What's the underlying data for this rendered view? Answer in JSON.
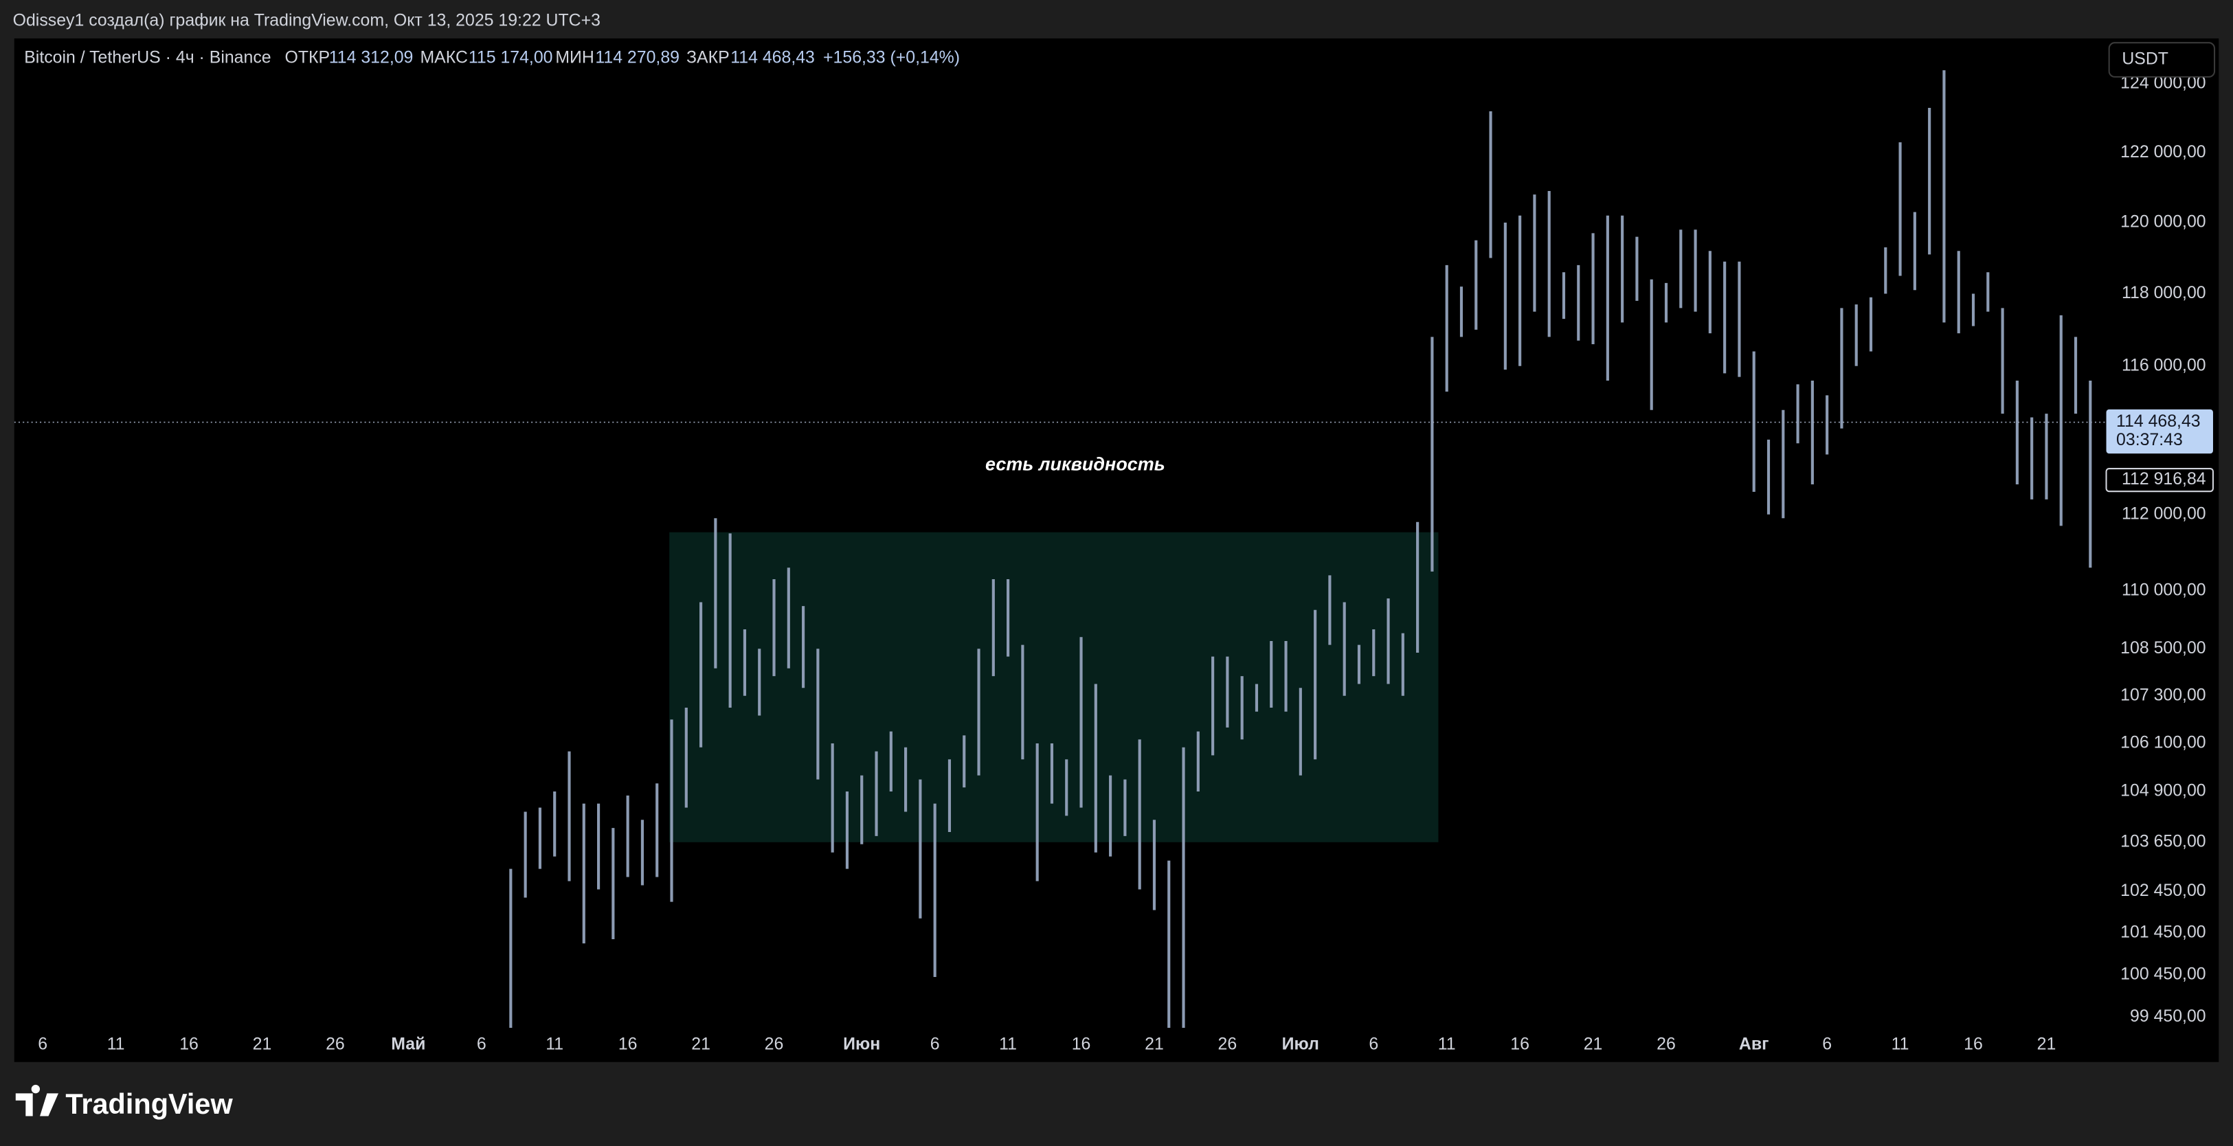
{
  "header": "Odissey1 создал(а) график на TradingView.com, Окт 13, 2025 19:22 UTC+3",
  "chart_data": {
    "type": "ohlc",
    "symbol": "Bitcoin / TetherUS · 4ч · Binance",
    "legend": [
      {
        "label": "ОТКР",
        "value": "114 312,09"
      },
      {
        "label": "МАКС",
        "value": "115 174,00"
      },
      {
        "label": "МИН",
        "value": "114 270,89"
      },
      {
        "label": "ЗАКР",
        "value": "114 468,43"
      }
    ],
    "change": "+156,33 (+0,14%)",
    "currency": "USDT",
    "annotation": "есть ликвидность",
    "log_scale": true,
    "color": "#8c9bb3",
    "categories": [
      "6",
      null,
      null,
      null,
      null,
      "11",
      null,
      null,
      null,
      null,
      "16",
      null,
      null,
      null,
      null,
      "21",
      null,
      null,
      null,
      null,
      "26",
      null,
      null,
      null,
      null,
      "Май",
      null,
      null,
      null,
      null,
      "6",
      null,
      null,
      null,
      null,
      "11",
      null,
      null,
      null,
      null,
      "16",
      null,
      null,
      null,
      null,
      "21",
      null,
      null,
      null,
      null,
      "26",
      null,
      null,
      null,
      null,
      null,
      "Июн",
      null,
      null,
      null,
      null,
      "6",
      null,
      null,
      null,
      null,
      "11",
      null,
      null,
      null,
      null,
      "16",
      null,
      null,
      null,
      null,
      "21",
      null,
      null,
      null,
      null,
      "26",
      null,
      null,
      null,
      null,
      "Июл",
      null,
      null,
      null,
      null,
      "6",
      null,
      null,
      null,
      null,
      "11",
      null,
      null,
      null,
      null,
      "16",
      null,
      null,
      null,
      null,
      "21",
      null,
      null,
      null,
      null,
      "26",
      null,
      null,
      null,
      null,
      null,
      "Авг",
      null,
      null,
      null,
      null,
      "6",
      null,
      null,
      null,
      null,
      "11",
      null,
      null,
      null,
      null,
      "16",
      null,
      null,
      null,
      null,
      "21",
      null,
      null,
      null
    ],
    "high": [
      null,
      null,
      null,
      null,
      null,
      null,
      null,
      null,
      null,
      null,
      null,
      null,
      null,
      null,
      null,
      null,
      null,
      null,
      null,
      null,
      null,
      null,
      null,
      null,
      null,
      null,
      null,
      null,
      null,
      null,
      null,
      null,
      103000,
      104400,
      104500,
      104900,
      105900,
      104600,
      104600,
      104000,
      104800,
      104200,
      105100,
      106700,
      107000,
      109700,
      111900,
      111500,
      109000,
      108500,
      110300,
      110600,
      109600,
      108500,
      106100,
      104900,
      105300,
      105900,
      106400,
      106000,
      105200,
      104600,
      105700,
      106300,
      108500,
      110300,
      110300,
      108600,
      106100,
      106100,
      105700,
      108800,
      107600,
      105300,
      105200,
      106200,
      104200,
      103200,
      106000,
      106400,
      108300,
      108300,
      107800,
      107600,
      108700,
      108700,
      107500,
      109500,
      110400,
      109700,
      108600,
      109000,
      109800,
      108900,
      111800,
      116800,
      118800,
      118200,
      119500,
      123200,
      120000,
      120200,
      120800,
      120900,
      118600,
      118800,
      119700,
      120200,
      120200,
      119600,
      118400,
      118300,
      119800,
      119800,
      119200,
      118900,
      118900,
      116400,
      114000,
      114800,
      115500,
      115600,
      115200,
      117600,
      117700,
      117900,
      119300,
      122300,
      120300,
      123300,
      124400,
      119200,
      118000,
      118600,
      117600,
      115600,
      114600,
      114700,
      117400,
      116800,
      115600
    ],
    "low": [
      null,
      null,
      null,
      null,
      null,
      null,
      null,
      null,
      null,
      null,
      null,
      null,
      null,
      null,
      null,
      null,
      null,
      null,
      null,
      null,
      null,
      null,
      null,
      null,
      null,
      null,
      null,
      null,
      null,
      null,
      null,
      null,
      99000,
      102300,
      103000,
      103300,
      102700,
      101200,
      102500,
      101300,
      102800,
      102600,
      102800,
      102200,
      104500,
      106000,
      108000,
      107000,
      107300,
      106800,
      107800,
      108000,
      107500,
      105200,
      103400,
      103000,
      103600,
      103800,
      104900,
      104400,
      101800,
      100400,
      103900,
      105000,
      105300,
      107800,
      108300,
      105700,
      102700,
      104600,
      104300,
      104500,
      103400,
      103300,
      103800,
      102500,
      102000,
      98400,
      98800,
      104900,
      105800,
      106500,
      106200,
      106900,
      107000,
      106900,
      105300,
      105700,
      108600,
      107300,
      107600,
      107800,
      107600,
      107300,
      108400,
      110500,
      115300,
      116800,
      117000,
      119000,
      115900,
      116000,
      117500,
      116800,
      117300,
      116700,
      116600,
      115600,
      117200,
      117800,
      114800,
      117200,
      117600,
      117500,
      116900,
      115800,
      115700,
      112600,
      112000,
      111900,
      113900,
      112800,
      113600,
      114300,
      116000,
      116400,
      118000,
      118500,
      118100,
      119100,
      117200,
      116900,
      117100,
      117500,
      114700,
      112800,
      112400,
      112400,
      111700,
      114700,
      110600
    ],
    "ylim": [
      99200,
      125340
    ],
    "yticks": [
      {
        "value": 124000,
        "label": "124 000,00"
      },
      {
        "value": 122000,
        "label": "122 000,00"
      },
      {
        "value": 120000,
        "label": "120 000,00"
      },
      {
        "value": 118000,
        "label": "118 000,00"
      },
      {
        "value": 116000,
        "label": "116 000,00"
      },
      {
        "value": 112000,
        "label": "112 000,00"
      },
      {
        "value": 110000,
        "label": "110 000,00"
      },
      {
        "value": 108500,
        "label": "108 500,00"
      },
      {
        "value": 107300,
        "label": "107 300,00"
      },
      {
        "value": 106100,
        "label": "106 100,00"
      },
      {
        "value": 104900,
        "label": "104 900,00"
      },
      {
        "value": 103650,
        "label": "103 650,00"
      },
      {
        "value": 102450,
        "label": "102 450,00"
      },
      {
        "value": 101450,
        "label": "101 450,00"
      },
      {
        "value": 100450,
        "label": "100 450,00"
      },
      {
        "value": 99450,
        "label": "99 450,00"
      }
    ],
    "price_line": {
      "value": 114468.43,
      "label": "114 468,43",
      "countdown": "03:37:43"
    },
    "marker": {
      "value": 112916.84,
      "label": "112 916,84"
    },
    "zone": {
      "top": 111530,
      "bottom": 103650,
      "color": "#06201b"
    }
  },
  "footer": "TradingView"
}
